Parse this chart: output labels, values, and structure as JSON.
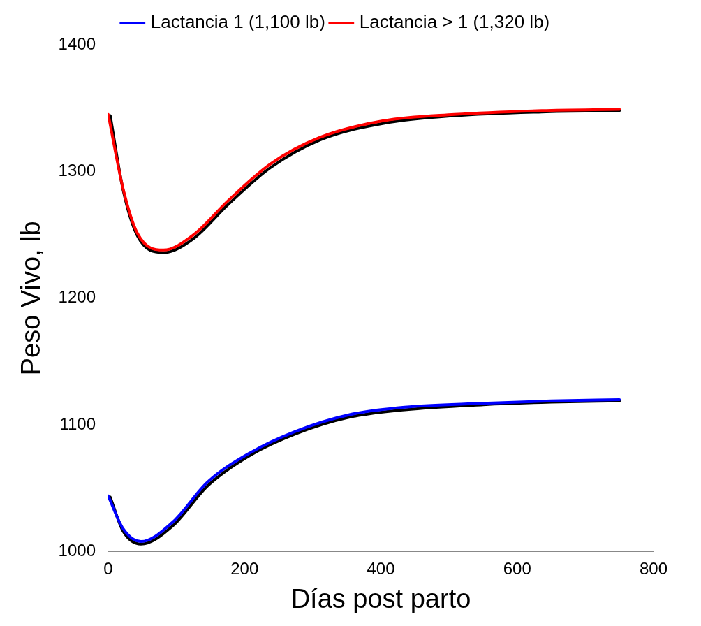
{
  "chart_data": {
    "type": "line",
    "xlabel": "Días post parto",
    "ylabel": "Peso Vivo, lb",
    "xlim": [
      0,
      800
    ],
    "xticks": [
      0,
      200,
      400,
      600,
      800
    ],
    "ylim": [
      1000,
      1400
    ],
    "yticks": [
      1000,
      1100,
      1200,
      1300,
      1400
    ],
    "grid": false,
    "legend": "top",
    "marker": "none",
    "line_style": "solid",
    "series": [
      {
        "color": "#000000",
        "x": [
          3,
          22,
          43,
          81,
          125,
          176,
          238,
          311,
          404,
          508,
          636,
          750
        ],
        "values": [
          1344,
          1285,
          1249,
          1236,
          1247,
          1274,
          1303,
          1325,
          1338,
          1344,
          1347,
          1348
        ]
      },
      {
        "name": "Lactancia > 1 (1,320 lb)",
        "color": "#ff0000",
        "x": [
          0,
          22,
          43,
          81,
          125,
          176,
          238,
          311,
          404,
          508,
          636,
          750
        ],
        "values": [
          1345,
          1286,
          1251,
          1238,
          1250,
          1277,
          1306,
          1327,
          1340,
          1345,
          1348,
          1349
        ]
      },
      {
        "color": "#000000",
        "x": [
          3,
          22,
          48,
          94,
          146,
          208,
          275,
          353,
          435,
          550,
          650,
          750
        ],
        "values": [
          1043,
          1016,
          1006,
          1020,
          1052,
          1076,
          1093,
          1106,
          1112,
          1116,
          1118,
          1119
        ]
      },
      {
        "name": "Lactancia 1 (1,100 lb)",
        "color": "#0000ff",
        "x": [
          0,
          22,
          48,
          94,
          146,
          208,
          275,
          353,
          435,
          550,
          650,
          750
        ],
        "values": [
          1044,
          1018,
          1008,
          1023,
          1055,
          1078,
          1095,
          1108,
          1114,
          1117,
          1119,
          1120
        ]
      }
    ]
  }
}
